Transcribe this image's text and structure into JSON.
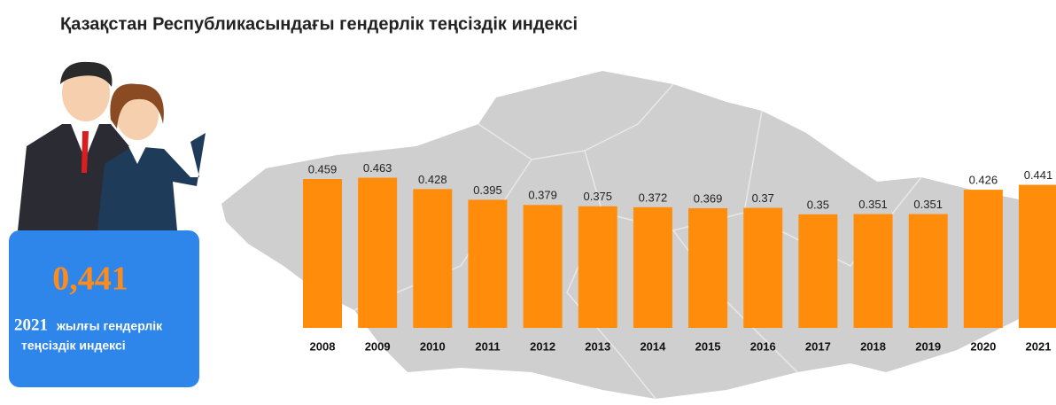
{
  "chart_data": {
    "type": "bar",
    "title": "Қазақстан Республикасындағы гендерлік теңсіздік индексі",
    "categories": [
      "2008",
      "2009",
      "2010",
      "2011",
      "2012",
      "2013",
      "2014",
      "2015",
      "2016",
      "2017",
      "2018",
      "2019",
      "2020",
      "2021"
    ],
    "values": [
      0.459,
      0.463,
      0.428,
      0.395,
      0.379,
      0.375,
      0.372,
      0.369,
      0.37,
      0.35,
      0.351,
      0.351,
      0.426,
      0.441
    ],
    "color": "#ff8c0a"
  },
  "callout": {
    "label": "0,441",
    "year": "2021",
    "caption_line1": "жылғы гендерлік",
    "caption_line2": "теңсіздік индексі"
  }
}
